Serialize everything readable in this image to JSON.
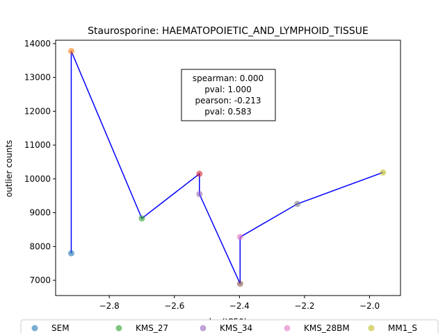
{
  "chart_data": {
    "type": "scatter",
    "title": "Staurosporine: HAEMATOPOIETIC_AND_LYMPHOID_TISSUE",
    "xlabel": "log(IC50)",
    "ylabel": "outlier counts",
    "xlim": [
      -2.965,
      -1.905
    ],
    "ylim": [
      6550,
      14100
    ],
    "xticks": [
      -2.8,
      -2.6,
      -2.4,
      -2.2,
      -2.0
    ],
    "xtick_labels": [
      "−2.8",
      "−2.6",
      "−2.4",
      "−2.2",
      "−2.0"
    ],
    "yticks": [
      7000,
      8000,
      9000,
      10000,
      11000,
      12000,
      13000,
      14000
    ],
    "ytick_labels": [
      "7000",
      "8000",
      "9000",
      "10000",
      "11000",
      "12000",
      "13000",
      "14000"
    ],
    "grid": false,
    "points": [
      {
        "name": "SEM",
        "x": -2.917,
        "y": 7800,
        "color": "#1f77b4"
      },
      {
        "name": "",
        "x": -2.917,
        "y": 13780,
        "color": "#ff7f0e"
      },
      {
        "name": "KMS_27",
        "x": -2.7,
        "y": 8830,
        "color": "#2ca02c"
      },
      {
        "name": "",
        "x": -2.523,
        "y": 10150,
        "color": "#d62728"
      },
      {
        "name": "KMS_34",
        "x": -2.523,
        "y": 9550,
        "color": "#9467bd"
      },
      {
        "name": "",
        "x": -2.398,
        "y": 6900,
        "color": "#8c564b"
      },
      {
        "name": "KMS_28BM",
        "x": -2.398,
        "y": 8280,
        "color": "#e377c2"
      },
      {
        "name": "",
        "x": -2.222,
        "y": 9260,
        "color": "#7f7f7f"
      },
      {
        "name": "MM1_S",
        "x": -1.959,
        "y": 10190,
        "color": "#bcbd22"
      }
    ],
    "fit_line": {
      "color": "#0000ff",
      "x": [
        -2.917,
        -2.917,
        -2.7,
        -2.523,
        -2.523,
        -2.398,
        -2.398,
        -2.222,
        -1.959
      ],
      "y": [
        7800,
        13780,
        8830,
        10150,
        9550,
        6900,
        8280,
        9260,
        10190
      ]
    },
    "annotation": {
      "lines": [
        "spearman: 0.000",
        "pval: 1.000",
        "pearson: -0.213",
        "pval: 0.583"
      ],
      "placement": "top-center"
    },
    "legend": {
      "placement": "bottom",
      "entries": [
        {
          "label": "SEM",
          "color": "#1f77b4"
        },
        {
          "label": "KMS_27",
          "color": "#2ca02c"
        },
        {
          "label": "KMS_34",
          "color": "#9467bd"
        },
        {
          "label": "KMS_28BM",
          "color": "#e377c2"
        },
        {
          "label": "MM1_S",
          "color": "#bcbd22"
        }
      ]
    }
  }
}
